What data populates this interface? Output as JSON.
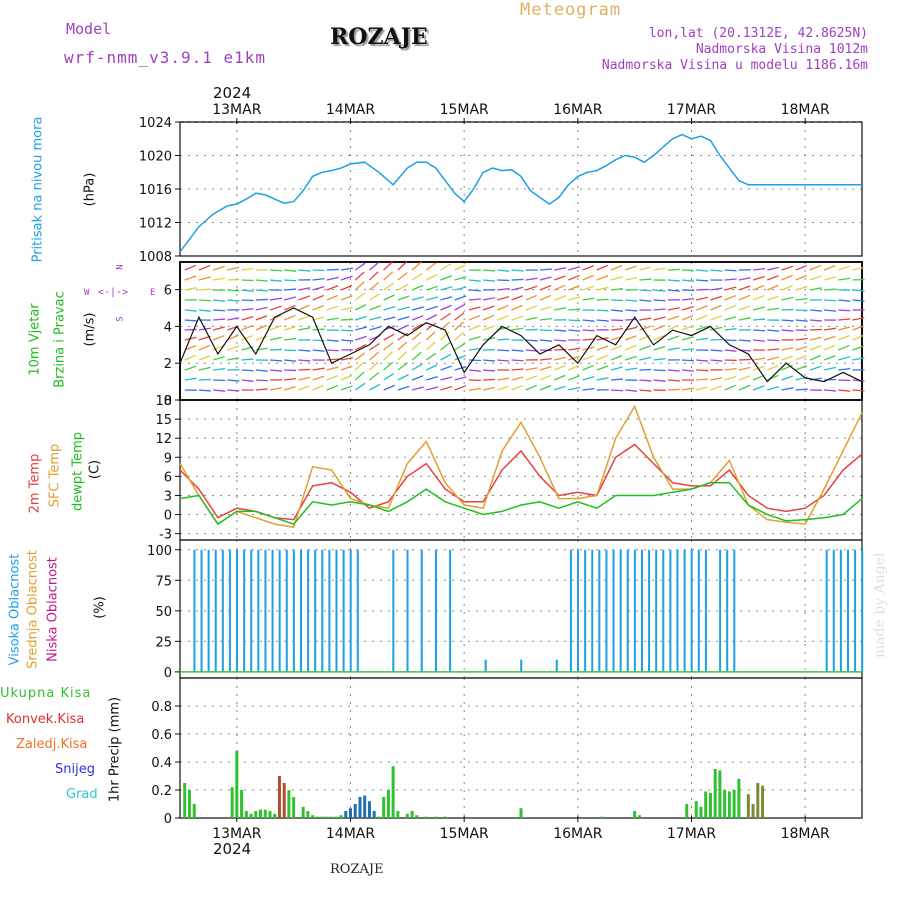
{
  "header": {
    "model_label": "Model",
    "model_name": "wrf-nmm_v3.9.1 e1km",
    "station": "ROZAJE",
    "product": "Meteogram",
    "lonlat": "lon,lat (20.1312E, 42.8625N)",
    "elevation": "Nadmorska Visina 1012m",
    "model_elevation": "Nadmorska Visina u modelu 1186.16m",
    "top_year": "2024",
    "bottom_year": "2024",
    "footer_station": "ROZAJE",
    "credit": "made by Angel"
  },
  "colors": {
    "pressure": "#1ea0e6",
    "wind_label": "#22bb22",
    "temp2m": "#e84040",
    "sfc": "#e0a030",
    "dewpt": "#20c020",
    "high_cloud": "#1ea0e6",
    "mid_cloud": "#e0a030",
    "low_cloud": "#c01890",
    "total_precip": "#30c030",
    "conv_precip": "#e03030",
    "frozen_precip": "#f07020",
    "snow": "#3030e0",
    "hail": "#30c8c8",
    "compass": "#a040c0"
  },
  "x_axis": {
    "days": [
      "13MAR",
      "14MAR",
      "15MAR",
      "16MAR",
      "17MAR",
      "18MAR"
    ],
    "start_hours": -12,
    "end_hours": 132
  },
  "panels": {
    "pressure": {
      "ylabel_1": "Pritisak na nivou mora",
      "ylabel_2": "(hPa)",
      "ticks": [
        "1008",
        "1012",
        "1016",
        "1020",
        "1024"
      ]
    },
    "wind": {
      "ylabel_1": "10m Vjetar",
      "ylabel_2": "Brzina i Pravac",
      "ylabel_3": "(m/s)",
      "ticks": [
        "0",
        "2",
        "4",
        "6"
      ],
      "compass_n": "N",
      "compass_w": "W",
      "compass_e": "E",
      "compass_s": "S"
    },
    "temp": {
      "ylabel_1": "2m Temp",
      "ylabel_2": "SFC Temp",
      "ylabel_3": "dewpt Temp",
      "ylabel_4": "(C)",
      "ticks": [
        "-3",
        "0",
        "3",
        "6",
        "9",
        "12",
        "15",
        "18"
      ]
    },
    "cloud": {
      "ylabel_1": "Visoka Oblacnost",
      "ylabel_2": "Srednja Oblacnost",
      "ylabel_3": "Niska Oblacnost",
      "ylabel_4": "(%)",
      "ticks": [
        "0",
        "25",
        "50",
        "75",
        "100"
      ]
    },
    "precip": {
      "legend": [
        "Ukupna Kisa",
        "Konvek.Kisa",
        "Zaledj.Kisa",
        "Snijeg",
        "Grad"
      ],
      "ylabel": "1hr Precip (mm)",
      "ticks": [
        "0",
        "0.2",
        "0.4",
        "0.6",
        "0.8"
      ]
    }
  },
  "chart_data": [
    {
      "type": "line",
      "x_unit": "hours since 13MAR 00",
      "series": [
        {
          "values_x": [
            -12,
            -10,
            -8,
            -5,
            -2,
            0,
            2,
            4,
            6,
            8,
            10,
            12,
            14,
            16,
            18,
            20,
            22,
            24,
            27,
            30,
            33,
            36,
            38,
            40,
            42,
            44,
            46,
            48,
            50,
            52,
            54,
            56,
            58,
            60,
            62,
            64,
            66,
            68,
            70,
            72,
            74,
            76,
            78,
            80,
            82,
            84,
            86,
            88,
            90,
            92,
            94,
            96,
            98,
            100,
            102,
            104,
            106,
            108,
            110,
            112,
            114,
            116,
            118,
            120,
            122,
            124,
            126,
            128,
            130,
            132
          ],
          "values_y": [
            1008.5,
            1010,
            1011.5,
            1013,
            1014,
            1014.2,
            1014.8,
            1015.5,
            1015.3,
            1014.8,
            1014.3,
            1014.5,
            1015.8,
            1017.5,
            1018,
            1018.2,
            1018.5,
            1019,
            1019.2,
            1018,
            1016.5,
            1018.5,
            1019.2,
            1019.2,
            1018.5,
            1017,
            1015.5,
            1014.5,
            1016,
            1018,
            1018.5,
            1018.2,
            1018.3,
            1017.5,
            1015.8,
            1015,
            1014.2,
            1015,
            1016.5,
            1017.5,
            1018,
            1018.2,
            1018.8,
            1019.5,
            1020,
            1019.8,
            1019.2,
            1020,
            1021,
            1022,
            1022.5,
            1022,
            1022.3,
            1021.8,
            1020,
            1018.5,
            1017,
            1016.5,
            1016.5,
            1016.5,
            1016.5,
            1016.5,
            1016.5,
            1016.5,
            1016.5,
            1016.5,
            1016.5,
            1016.5,
            1016.5,
            1016.5
          ]
        }
      ],
      "ylim": [
        1008,
        1024
      ]
    },
    {
      "type": "line",
      "series": [
        {
          "name": "2m Temp",
          "values_x": [
            -12,
            -8,
            -4,
            0,
            4,
            8,
            12,
            16,
            20,
            24,
            28,
            32,
            36,
            40,
            44,
            48,
            52,
            56,
            60,
            64,
            68,
            72,
            76,
            80,
            84,
            88,
            92,
            96,
            100,
            104,
            108,
            112,
            116,
            120,
            124,
            128,
            132
          ],
          "values_y": [
            7,
            4,
            -0.5,
            1,
            0.5,
            -0.5,
            -0.8,
            4.5,
            5,
            3.5,
            1,
            2,
            6,
            8,
            4,
            2,
            2,
            7,
            10,
            6,
            3,
            3.5,
            3,
            9,
            11,
            8,
            5,
            4.5,
            4.5,
            7,
            3,
            1,
            0.5,
            1,
            3,
            7,
            9.5
          ]
        },
        {
          "name": "SFC Temp",
          "values_x": [
            -12,
            -8,
            -4,
            0,
            4,
            8,
            12,
            16,
            20,
            24,
            28,
            32,
            36,
            40,
            44,
            48,
            52,
            56,
            60,
            64,
            68,
            72,
            76,
            80,
            84,
            88,
            92,
            96,
            100,
            104,
            108,
            112,
            116,
            120,
            124,
            128,
            132
          ],
          "values_y": [
            8,
            3,
            -1.5,
            0.5,
            -0.5,
            -1.5,
            -2,
            7.5,
            7,
            2.5,
            1.5,
            1,
            8,
            11.5,
            5,
            1.5,
            1,
            10,
            14.5,
            9,
            2.5,
            2.5,
            3,
            12,
            17,
            9,
            4,
            4,
            5,
            8.5,
            1.5,
            -0.8,
            -1.2,
            -1.5,
            4,
            10,
            16
          ]
        },
        {
          "name": "dewpt Temp",
          "values_x": [
            -12,
            -8,
            -4,
            0,
            4,
            8,
            12,
            16,
            20,
            24,
            28,
            32,
            36,
            40,
            44,
            48,
            52,
            56,
            60,
            64,
            68,
            72,
            76,
            80,
            84,
            88,
            92,
            96,
            100,
            104,
            108,
            112,
            116,
            120,
            124,
            128,
            132
          ],
          "values_y": [
            2.5,
            3,
            -1.5,
            0.5,
            0.5,
            -0.5,
            -1.5,
            2,
            1.5,
            2,
            1.5,
            0.5,
            2,
            4,
            2,
            1,
            0,
            0.5,
            1.5,
            2,
            1,
            2,
            1,
            3,
            3,
            3,
            3.5,
            4,
            5,
            5,
            1.5,
            0,
            -1,
            -0.8,
            -0.5,
            0,
            2.5
          ]
        }
      ],
      "ylim": [
        -4,
        18
      ]
    },
    {
      "type": "bar",
      "series": [
        {
          "name": "Ukupna Kisa",
          "values_x": [
            -11,
            -10,
            -9,
            -1,
            0,
            1,
            2,
            3,
            4,
            5,
            6,
            7,
            8,
            9,
            10,
            11,
            12,
            14,
            15,
            16,
            17,
            18,
            19,
            20,
            21,
            22,
            23,
            24,
            25,
            26,
            27,
            28,
            29,
            30,
            31,
            32,
            33,
            34,
            36,
            37,
            38,
            40,
            42,
            44,
            60,
            77,
            84,
            85,
            95,
            97,
            98,
            99,
            100,
            101,
            102,
            103,
            104,
            105,
            106,
            108,
            109,
            110,
            111
          ],
          "values_y": [
            0.25,
            0.2,
            0.1,
            0.22,
            0.48,
            0.2,
            0.05,
            0.03,
            0.05,
            0.06,
            0.06,
            0.05,
            0.03,
            0.3,
            0.25,
            0.2,
            0.15,
            0.08,
            0.05,
            0.02,
            0.01,
            0.01,
            0.01,
            0.01,
            0.01,
            0.02,
            0.05,
            0.07,
            0.1,
            0.15,
            0.16,
            0.12,
            0.05,
            0.01,
            0.15,
            0.2,
            0.37,
            0.05,
            0.03,
            0.05,
            0.02,
            0.01,
            0.01,
            0.01,
            0.07,
            0.01,
            0.05,
            0.02,
            0.1,
            0.12,
            0.08,
            0.19,
            0.18,
            0.35,
            0.34,
            0.2,
            0.19,
            0.2,
            0.28,
            0.17,
            0.1,
            0.25,
            0.23
          ]
        }
      ],
      "ylim": [
        0,
        1
      ]
    }
  ]
}
